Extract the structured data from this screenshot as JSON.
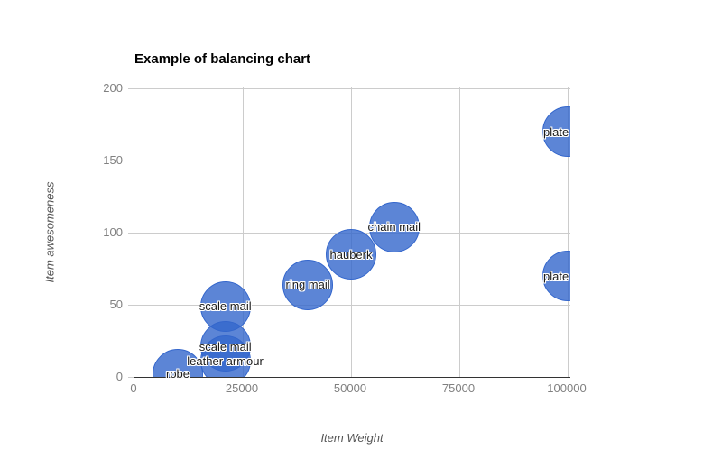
{
  "chart": {
    "title": "Example of balancing chart",
    "x_axis": {
      "title": "Item Weight"
    },
    "y_axis": {
      "title": "Item awesomeness"
    },
    "colors": {
      "bubble_fill": "#5c7ad6",
      "bubble_stroke": "#3366cc",
      "gridline": "#cccccc",
      "axis_line": "#333333",
      "tick_text": "#808080",
      "title_text": "#000000"
    }
  },
  "chart_data": {
    "type": "scatter",
    "marker": "bubble",
    "title": "Example of balancing chart",
    "xlabel": "Item Weight",
    "ylabel": "Item awesomeness",
    "xlim": [
      0,
      100000
    ],
    "ylim": [
      0,
      200
    ],
    "x_ticks": [
      0,
      25000,
      50000,
      75000,
      100000
    ],
    "y_ticks": [
      0,
      50,
      100,
      150,
      200
    ],
    "grid": true,
    "legend": "none",
    "points": [
      {
        "label": "robe",
        "x": 10000,
        "y": 2
      },
      {
        "label": "leather armour",
        "x": 21000,
        "y": 11
      },
      {
        "label": "scale mail",
        "x": 21000,
        "y": 21
      },
      {
        "label": "scale mail",
        "x": 21000,
        "y": 49
      },
      {
        "label": "ring mail",
        "x": 40000,
        "y": 64
      },
      {
        "label": "hauberk",
        "x": 50000,
        "y": 85
      },
      {
        "label": "chain mail",
        "x": 60000,
        "y": 104
      },
      {
        "label": "plate",
        "x": 100000,
        "y": 170
      },
      {
        "label": "plate",
        "x": 100000,
        "y": 70
      }
    ]
  }
}
